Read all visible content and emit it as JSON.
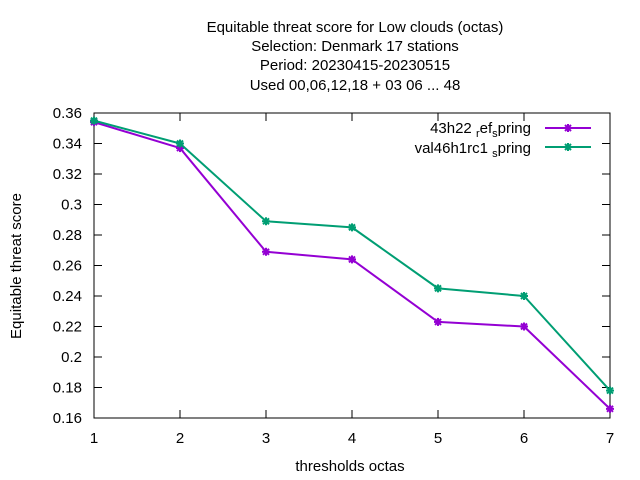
{
  "chart_data": {
    "type": "line",
    "title_lines": [
      "Equitable threat score  for Low clouds (octas)",
      "Selection: Denmark     17 stations",
      "Period: 20230415-20230515",
      "Used  00,06,12,18  + 03 06 ... 48"
    ],
    "xlabel": "thresholds octas",
    "ylabel": "Equitable threat score",
    "x": [
      1,
      2,
      3,
      4,
      5,
      6,
      7
    ],
    "xlim": [
      1,
      7
    ],
    "ylim": [
      0.16,
      0.36
    ],
    "xticks": [
      "1",
      "2",
      "3",
      "4",
      "5",
      "6",
      "7"
    ],
    "yticks": [
      "0.16",
      "0.18",
      "0.2",
      "0.22",
      "0.24",
      "0.26",
      "0.28",
      "0.3",
      "0.32",
      "0.34",
      "0.36"
    ],
    "grid": false,
    "legend_position": "top-right",
    "series": [
      {
        "name": "43h22_ref_spring",
        "legend_parts": {
          "base": "43h22 ",
          "sub1": "r",
          "mid": "ef",
          "sub2": "s",
          "tail": "pring"
        },
        "color": "#9400d3",
        "values": [
          0.354,
          0.337,
          0.269,
          0.264,
          0.223,
          0.22,
          0.166
        ]
      },
      {
        "name": "val46h1rc1_spring",
        "legend_parts": {
          "base": "val46h1rc1 ",
          "sub": "s",
          "tail": "pring"
        },
        "color": "#009e73",
        "values": [
          0.355,
          0.34,
          0.289,
          0.285,
          0.245,
          0.24,
          0.178
        ]
      }
    ]
  }
}
